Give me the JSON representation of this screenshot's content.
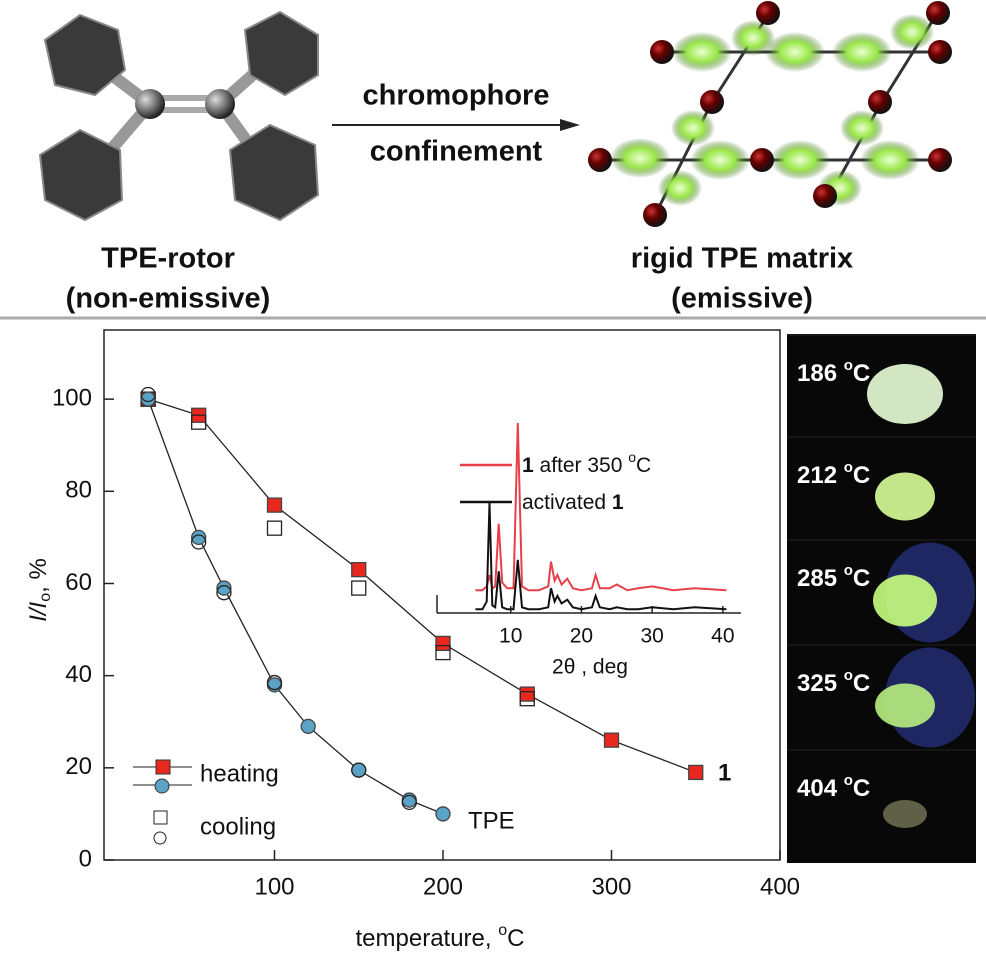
{
  "scheme": {
    "arrow_top": "chromophore",
    "arrow_bottom": "confinement",
    "left_title": "TPE-rotor",
    "left_subtitle": "(non-emissive)",
    "right_title": "rigid TPE matrix",
    "right_subtitle": "(emissive)"
  },
  "chart_data": [
    {
      "type": "scatter",
      "y_label": [
        "I/I",
        "o",
        ", %"
      ],
      "x_label": [
        "temperature, ",
        "o",
        "C"
      ],
      "xlim": [
        0,
        400
      ],
      "ylim": [
        0,
        115
      ],
      "xticks": [
        100,
        200,
        300,
        400
      ],
      "yticks": [
        0,
        20,
        40,
        60,
        80,
        100
      ],
      "series": [
        {
          "name": "heating",
          "sample": "1",
          "color": "#e8281e",
          "marker": "square",
          "filled": true,
          "line": true,
          "x": [
            25,
            55,
            100,
            150,
            200,
            250,
            300,
            350
          ],
          "values": [
            100,
            96.5,
            77,
            63,
            47,
            36,
            26,
            19
          ]
        },
        {
          "name": "cooling",
          "sample": "1",
          "color": "#222222",
          "marker": "square",
          "filled": false,
          "line": false,
          "x": [
            25,
            55,
            100,
            150,
            200,
            250
          ],
          "values": [
            100,
            95,
            72,
            59,
            45,
            35
          ]
        },
        {
          "name": "heating",
          "sample": "TPE",
          "color": "#5ba3c6",
          "marker": "circle",
          "filled": true,
          "line": true,
          "x": [
            25,
            55,
            70,
            100,
            120,
            150,
            180,
            200
          ],
          "values": [
            100,
            70,
            59,
            38,
            29,
            19.5,
            13,
            10
          ]
        },
        {
          "name": "cooling",
          "sample": "TPE",
          "color": "#222222",
          "marker": "circle",
          "filled": false,
          "line": false,
          "x": [
            25,
            55,
            70,
            100,
            150,
            180
          ],
          "values": [
            101,
            69,
            58,
            38.5,
            19.5,
            12.5
          ]
        }
      ]
    },
    {
      "type": "line",
      "x_label": "2θ , deg",
      "xlim": [
        0,
        42
      ],
      "ylim": [
        0,
        100
      ],
      "xticks": [
        10,
        20,
        30,
        40
      ],
      "x": [
        5,
        6,
        6.6,
        7,
        7.4,
        7.8,
        8.3,
        8.8,
        9.5,
        10.4,
        11,
        11.6,
        12.5,
        14,
        15.3,
        15.7,
        16.2,
        16.6,
        17.2,
        18,
        18.8,
        20,
        21.5,
        22,
        22.6,
        24,
        25,
        26.5,
        28,
        30,
        33,
        36,
        40.5
      ],
      "series": [
        {
          "name": [
            "1",
            " after 350 ",
            "o",
            "C"
          ],
          "color": "#e8404a",
          "values": [
            12,
            12,
            14,
            20,
            13,
            14,
            47,
            16,
            13,
            13,
            100,
            14,
            12,
            12,
            14,
            27,
            17,
            20,
            15,
            18,
            13,
            12,
            13,
            20,
            13,
            13,
            15,
            12,
            13,
            14,
            12,
            13,
            12
          ]
        },
        {
          "name": [
            "activated ",
            "1"
          ],
          "color": "#111111",
          "values": [
            2,
            2,
            6,
            58,
            4,
            3,
            22,
            3,
            2,
            2,
            28,
            3,
            2,
            2,
            3,
            13,
            6,
            9,
            5,
            7,
            3,
            2,
            3,
            9,
            3,
            2,
            3,
            2,
            2,
            3,
            2,
            3,
            2
          ]
        }
      ]
    }
  ],
  "photos": [
    {
      "label": [
        "186 ",
        "o",
        "C"
      ]
    },
    {
      "label": [
        "212 ",
        "o",
        "C"
      ]
    },
    {
      "label": [
        "285 ",
        "o",
        "C"
      ]
    },
    {
      "label": [
        "325 ",
        "o",
        "C"
      ]
    },
    {
      "label": [
        "404 ",
        "o",
        "C"
      ]
    }
  ]
}
